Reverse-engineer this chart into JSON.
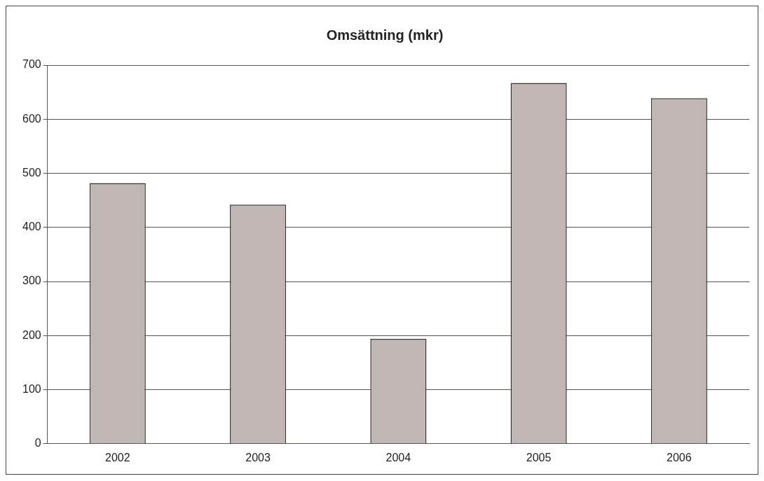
{
  "chart_data": {
    "type": "bar",
    "title": "Omsättning (mkr)",
    "categories": [
      "2002",
      "2003",
      "2004",
      "2005",
      "2006"
    ],
    "values": [
      482,
      442,
      194,
      667,
      639
    ],
    "color": "#c0b6b3",
    "ylim": [
      0,
      700
    ],
    "yticks": [
      0,
      100,
      200,
      300,
      400,
      500,
      600,
      700
    ],
    "grid": "y",
    "legend": false
  }
}
